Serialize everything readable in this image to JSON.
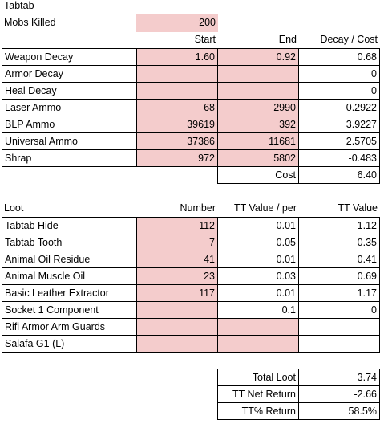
{
  "title": "Tabtab",
  "mobs_killed": {
    "label": "Mobs Killed",
    "value": "200"
  },
  "decay_table": {
    "header": [
      "Start",
      "End",
      "Decay / Cost"
    ],
    "rows": [
      [
        "Weapon Decay",
        "1.60",
        "0.92",
        "0.68"
      ],
      [
        "Armor Decay",
        null,
        null,
        "0"
      ],
      [
        "Heal Decay",
        null,
        null,
        "0"
      ],
      [
        "Laser Ammo",
        "68",
        "2990",
        "-0.2922"
      ],
      [
        "BLP Ammo",
        "39619",
        "392",
        "3.9227"
      ],
      [
        "Universal Ammo",
        "37386",
        "11681",
        "2.5705"
      ],
      [
        "Shrap",
        "972",
        "5802",
        "-0.483"
      ]
    ],
    "cost": {
      "label": "Cost",
      "value": "6.40"
    }
  },
  "loot_table": {
    "header": [
      "Loot",
      "Number",
      "TT Value / per",
      "TT Value"
    ],
    "rows": [
      [
        "Tabtab Hide",
        "112",
        "0.01",
        "1.12"
      ],
      [
        "Tabtab Tooth",
        "7",
        "0.05",
        "0.35"
      ],
      [
        "Animal Oil Residue",
        "41",
        "0.01",
        "0.41"
      ],
      [
        "Animal Muscle Oil",
        "23",
        "0.03",
        "0.69"
      ],
      [
        "Basic Leather Extractor",
        "117",
        "0.01",
        "1.17"
      ],
      [
        "Socket 1 Component",
        null,
        "0.1",
        "0"
      ],
      [
        "Rifi Armor Arm Guards",
        null,
        null,
        null
      ],
      [
        "Salafa G1 (L)",
        null,
        null,
        null
      ]
    ]
  },
  "totals": [
    {
      "label": "Total Loot",
      "value": "3.74"
    },
    {
      "label": "TT Net Return",
      "value": "-2.66"
    },
    {
      "label": "TT% Return",
      "value": "58.5%"
    }
  ]
}
